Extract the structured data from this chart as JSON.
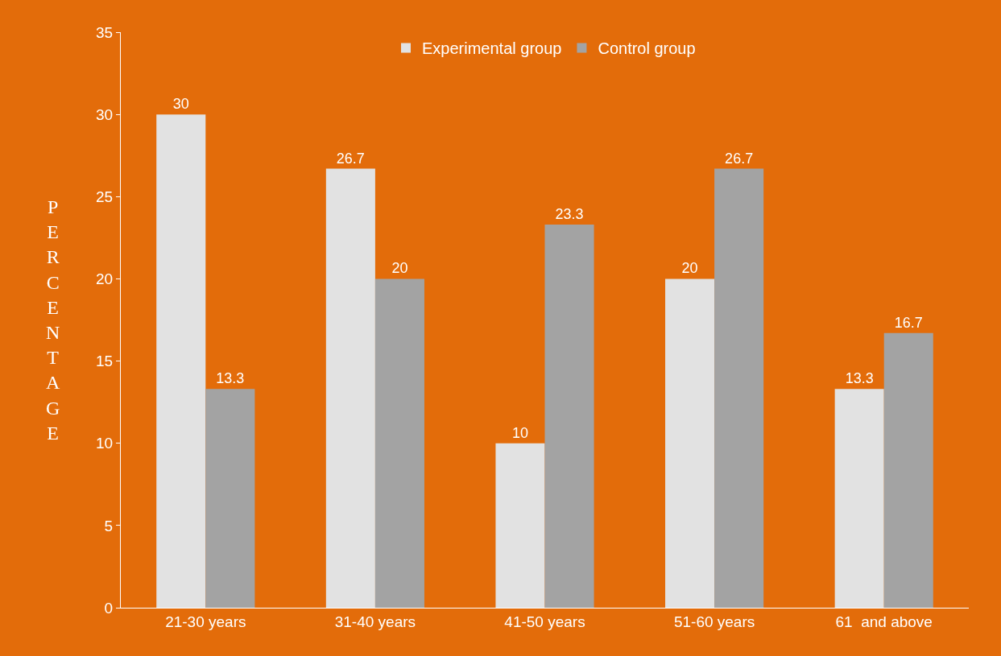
{
  "chart_data": {
    "type": "bar",
    "ylabel": "PERCENTAGE",
    "categories": [
      "21-30 years",
      "31-40 years",
      "41-50 years",
      "51-60 years",
      "61  and above"
    ],
    "series": [
      {
        "name": "Experimental group",
        "color": "#e2e2e2",
        "values": [
          30,
          26.7,
          10,
          20,
          13.3
        ]
      },
      {
        "name": "Control group",
        "color": "#a3a3a3",
        "values": [
          13.3,
          20,
          23.3,
          26.7,
          16.7
        ]
      }
    ],
    "ylim": [
      0,
      35
    ],
    "yticks": [
      0,
      5,
      10,
      15,
      20,
      25,
      30,
      35
    ],
    "grid": false,
    "legend": "top",
    "data_labels": true
  }
}
